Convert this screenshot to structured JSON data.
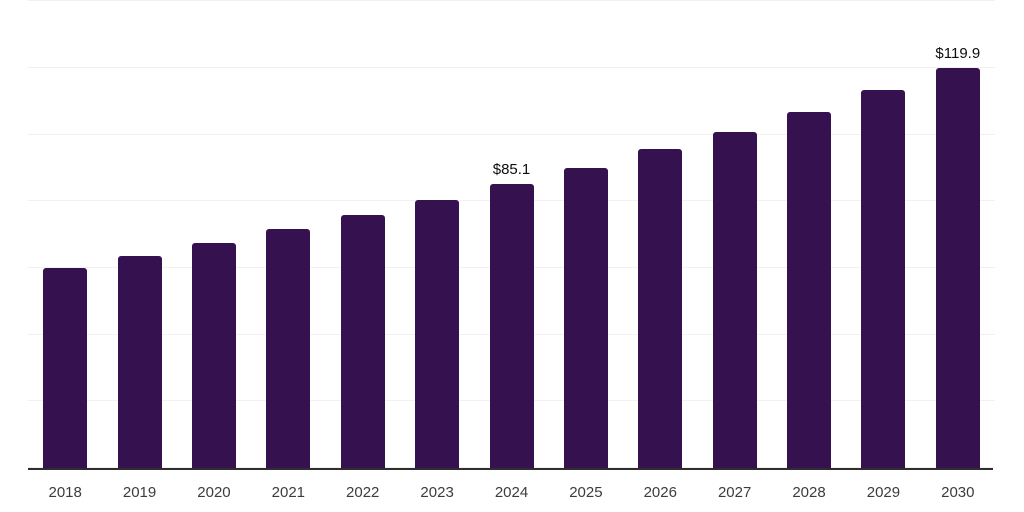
{
  "colors": {
    "background": "#ffffff",
    "bar": "#361150",
    "gridline": "#f1f1f1",
    "axis_line": "#2e2e2e",
    "tick_label": "#3c3c3c",
    "data_label": "#0d0d0d"
  },
  "chart_data": {
    "type": "bar",
    "title": "",
    "xlabel": "",
    "ylabel": "",
    "categories": [
      "2018",
      "2019",
      "2020",
      "2021",
      "2022",
      "2023",
      "2024",
      "2025",
      "2026",
      "2027",
      "2028",
      "2029",
      "2030"
    ],
    "values": [
      59.9,
      63.5,
      67.4,
      71.6,
      75.8,
      80.3,
      85.1,
      90.1,
      95.6,
      100.7,
      106.8,
      113.4,
      119.9
    ],
    "bar_labels": [
      "",
      "",
      "",
      "",
      "",
      "",
      "$85.1",
      "",
      "",
      "",
      "",
      "",
      "$119.9"
    ],
    "ylim": [
      0,
      140
    ],
    "grid_step": 20,
    "grid": true,
    "legend": false,
    "y_axis_labels_visible": false
  }
}
